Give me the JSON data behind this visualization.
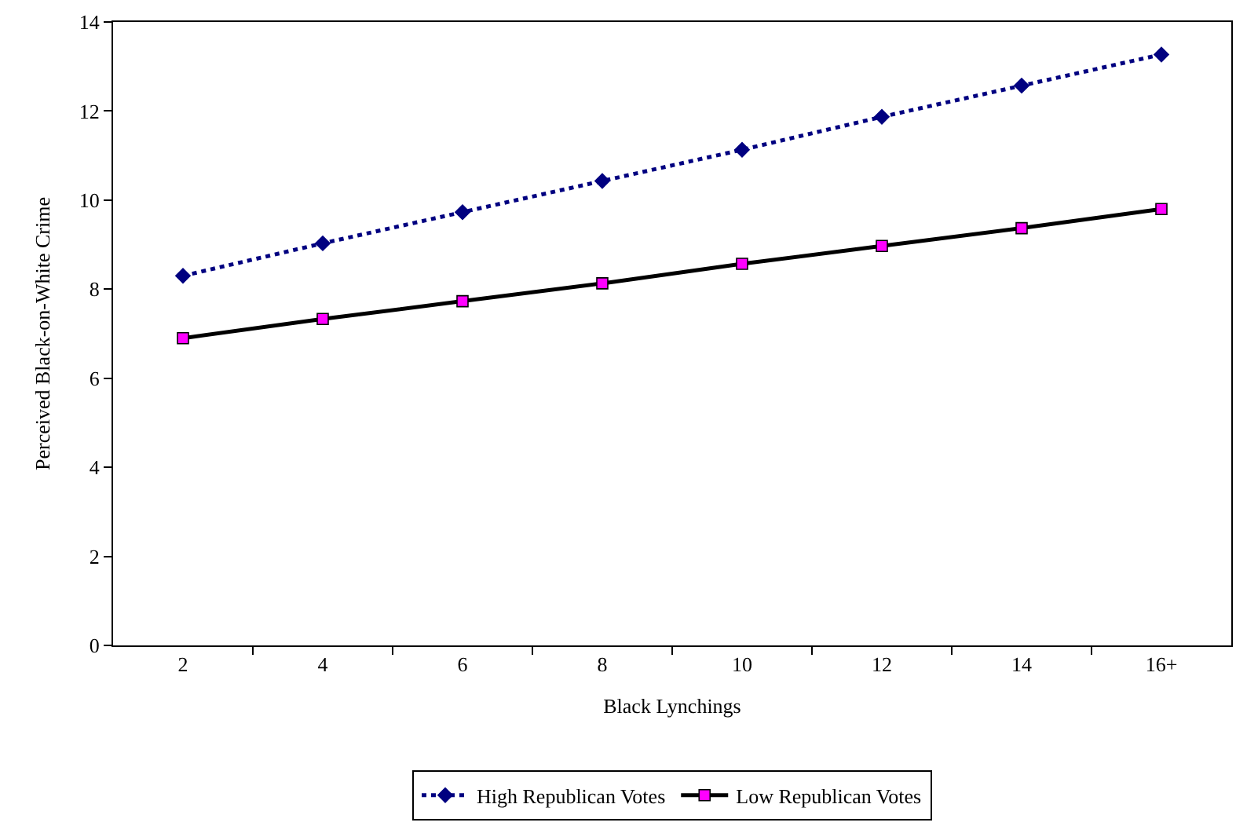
{
  "chart_data": {
    "type": "line",
    "xlabel": "Black Lynchings",
    "ylabel": "Perceived Black-on-White Crime",
    "categories": [
      "2",
      "4",
      "6",
      "8",
      "10",
      "12",
      "14",
      "16+"
    ],
    "series": [
      {
        "name": "High Republican Votes",
        "color": "#000080",
        "values": [
          8.3,
          9.03,
          9.73,
          10.43,
          11.13,
          11.87,
          12.57,
          13.27
        ],
        "marker": "diamond",
        "line_style": "dotted"
      },
      {
        "name": "Low Republican Votes",
        "color": "#000000",
        "colors": [
          "#ff00ff",
          "#ff00ff",
          "#ff00ff",
          "#ff00ff",
          "#ff00ff",
          "#ff00ff",
          "#ff00ff",
          "#ff00ff"
        ],
        "values": [
          6.9,
          7.33,
          7.73,
          8.13,
          8.57,
          8.97,
          9.37,
          9.8
        ],
        "marker": "square",
        "line_style": "solid"
      }
    ],
    "ylim": [
      0,
      14
    ],
    "yticks": [
      0,
      2,
      4,
      6,
      8,
      10,
      12,
      14
    ],
    "legend": "bottom"
  }
}
